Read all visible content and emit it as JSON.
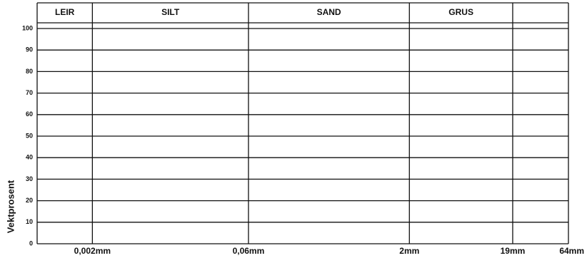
{
  "chart_data": {
    "type": "grain-size",
    "y_label": "Vektprosent",
    "zones": [
      "LEIR",
      "SILT",
      "SAND",
      "GRUS"
    ],
    "xscale": "log",
    "xlim": [
      0.0006,
      64
    ],
    "xticks": [
      {
        "value": 0.002,
        "label": "0,002mm"
      },
      {
        "value": 0.06,
        "label": "0,06mm"
      },
      {
        "value": 2,
        "label": "2mm"
      },
      {
        "value": 19,
        "label": "19mm"
      },
      {
        "value": 64,
        "label": "64mm"
      }
    ],
    "ylim": [
      0,
      100
    ],
    "yticks": [
      0,
      10,
      20,
      30,
      40,
      50,
      60,
      70,
      80,
      90,
      100
    ],
    "grid": true
  }
}
